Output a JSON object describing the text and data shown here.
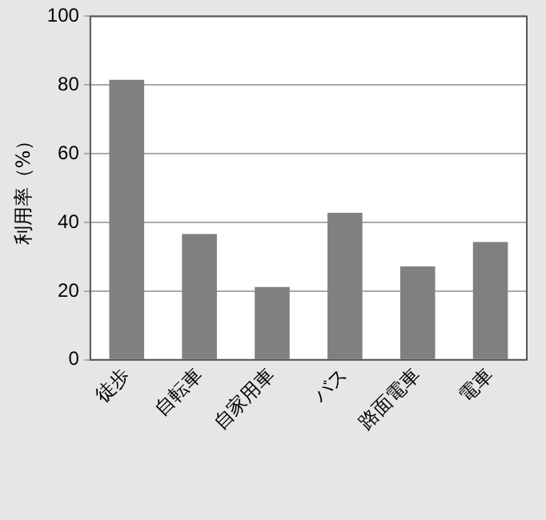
{
  "chart_data": {
    "type": "bar",
    "ylabel": "利用率（%）",
    "categories": [
      "徒歩",
      "自転車",
      "自家用車",
      "バス",
      "路面電車",
      "電車"
    ],
    "values": [
      81.5,
      36.6,
      21.2,
      42.8,
      27.2,
      34.3
    ],
    "color": "#808080",
    "ylim": [
      0,
      100
    ],
    "yticks": [
      0,
      20,
      40,
      60,
      80,
      100
    ],
    "grid": "y",
    "legend": false
  }
}
